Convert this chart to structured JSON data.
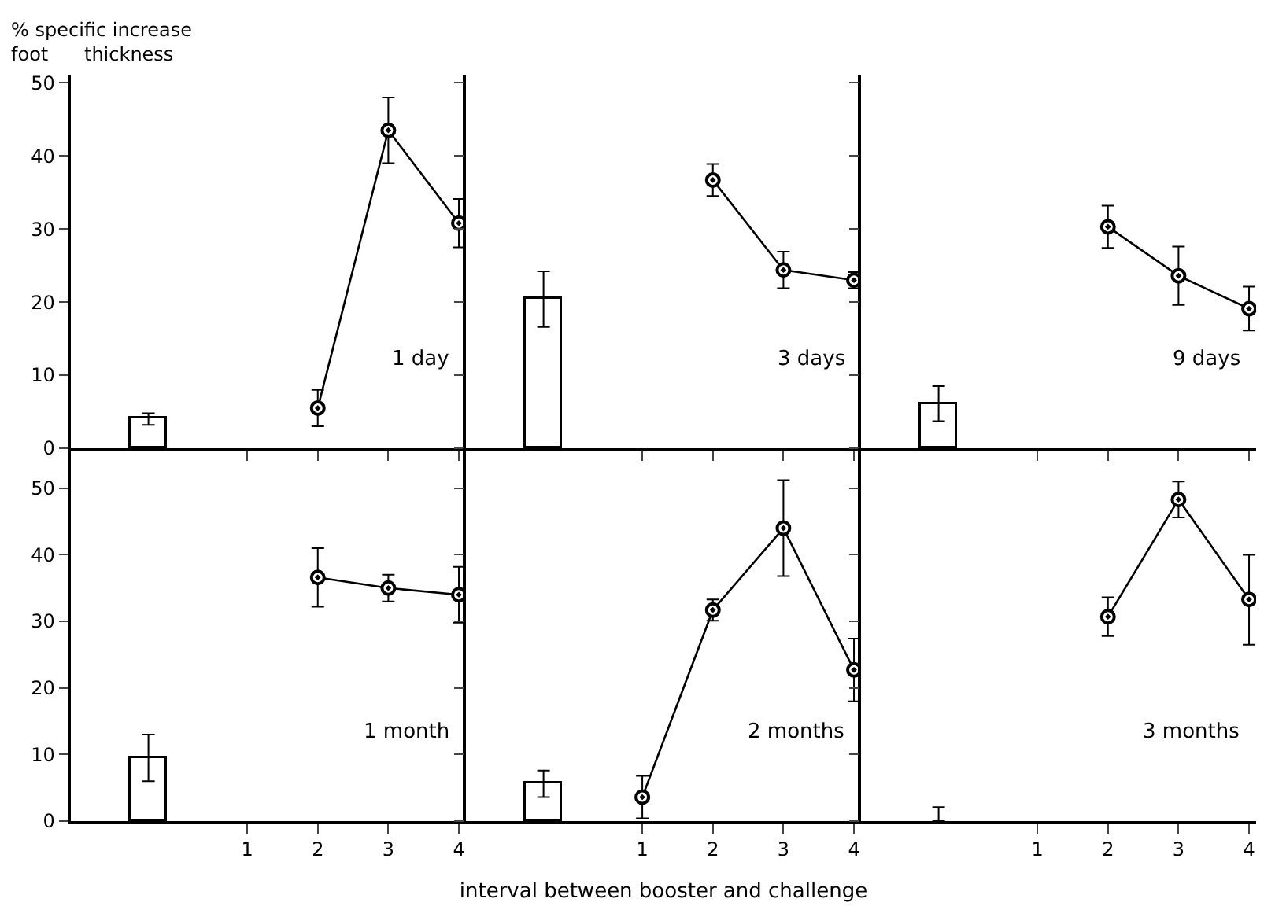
{
  "chart_data": [
    {
      "type": "line",
      "ylabel": "% specific increase\nfoot      thickness",
      "annotations": [
        "1 day"
      ],
      "xlim": [
        -1.5,
        4.1
      ],
      "xticks": [
        1,
        2,
        3,
        4
      ],
      "ylim": [
        0,
        51
      ],
      "yticks": [
        0,
        10,
        20,
        30,
        40,
        50
      ],
      "tick_labels": "y",
      "grid": false,
      "marker": "circle",
      "line_style": "solid",
      "series": [
        {
          "type": "bar",
          "x": [
            -0.4
          ],
          "values": [
            4
          ],
          "errors": [
            0.8
          ],
          "color": "#ffffff"
        },
        {
          "x": [
            2,
            3,
            4
          ],
          "values": [
            5.5,
            43.5,
            30.8
          ],
          "errors": [
            2.5,
            4.5,
            3.3
          ],
          "color": "#000000"
        }
      ]
    },
    {
      "type": "line",
      "annotations": [
        "3 days"
      ],
      "xlim": [
        -1.5,
        4.1
      ],
      "xticks": [
        1,
        2,
        3,
        4
      ],
      "ylim": [
        0,
        51
      ],
      "yticks": [
        0,
        10,
        20,
        30,
        40,
        50
      ],
      "tick_labels": false,
      "grid": false,
      "marker": "circle",
      "line_style": "solid",
      "series": [
        {
          "type": "bar",
          "x": [
            -0.4
          ],
          "values": [
            20.4
          ],
          "errors": [
            3.8
          ],
          "color": "#ffffff"
        },
        {
          "x": [
            2,
            3,
            4
          ],
          "values": [
            36.7,
            24.4,
            23.0
          ],
          "errors": [
            2.2,
            2.5,
            1.1
          ],
          "color": "#000000"
        }
      ]
    },
    {
      "type": "line",
      "annotations": [
        "9 days"
      ],
      "xlim": [
        -1.5,
        4.1
      ],
      "xticks": [
        1,
        2,
        3,
        4
      ],
      "ylim": [
        0,
        51
      ],
      "yticks": [
        0,
        10,
        20,
        30,
        40,
        50
      ],
      "tick_labels": false,
      "grid": false,
      "marker": "circle",
      "line_style": "solid",
      "series": [
        {
          "type": "bar",
          "x": [
            -0.4
          ],
          "values": [
            6.1
          ],
          "errors": [
            2.4
          ],
          "color": "#ffffff"
        },
        {
          "x": [
            2,
            3,
            4
          ],
          "values": [
            30.3,
            23.6,
            19.1
          ],
          "errors": [
            2.9,
            4.0,
            3.0
          ],
          "color": "#000000"
        }
      ]
    },
    {
      "type": "line",
      "annotations": [
        "1 month"
      ],
      "xlim": [
        -1.5,
        4.1
      ],
      "xticks": [
        1,
        2,
        3,
        4
      ],
      "ylim": [
        0,
        56
      ],
      "yticks": [
        0,
        10,
        20,
        30,
        40,
        50
      ],
      "grid": false,
      "marker": "circle",
      "line_style": "solid",
      "series": [
        {
          "type": "bar",
          "x": [
            -0.4
          ],
          "values": [
            9.5
          ],
          "errors": [
            3.5
          ],
          "color": "#ffffff"
        },
        {
          "x": [
            2,
            3,
            4
          ],
          "values": [
            36.6,
            35.0,
            34.0
          ],
          "errors": [
            4.4,
            2.0,
            4.2
          ],
          "color": "#000000"
        }
      ]
    },
    {
      "type": "line",
      "xlabel": "interval between booster and challenge",
      "annotations": [
        "2 months"
      ],
      "xlim": [
        -1.5,
        4.1
      ],
      "xticks": [
        1,
        2,
        3,
        4
      ],
      "ylim": [
        0,
        56
      ],
      "yticks": [
        0,
        10,
        20,
        30,
        40,
        50
      ],
      "tick_labels": "x",
      "grid": false,
      "marker": "circle",
      "line_style": "solid",
      "series": [
        {
          "type": "bar",
          "x": [
            -0.4
          ],
          "values": [
            5.6
          ],
          "errors": [
            2.0
          ],
          "color": "#ffffff"
        },
        {
          "x": [
            1,
            2,
            3,
            4
          ],
          "values": [
            3.6,
            31.7,
            44.0,
            22.7
          ],
          "errors": [
            3.2,
            1.6,
            7.2,
            4.7
          ],
          "color": "#000000"
        }
      ]
    },
    {
      "type": "line",
      "annotations": [
        "3 months"
      ],
      "xlim": [
        -1.5,
        4.1
      ],
      "xticks": [
        1,
        2,
        3,
        4
      ],
      "ylim": [
        0,
        56
      ],
      "yticks": [
        0,
        10,
        20,
        30,
        40,
        50
      ],
      "tick_labels": "x",
      "grid": false,
      "marker": "circle",
      "line_style": "solid",
      "series": [
        {
          "type": "bar",
          "x": [
            -0.4
          ],
          "values": [
            0
          ],
          "errors": [
            [
              0,
              2.1
            ]
          ],
          "color": "#ffffff"
        },
        {
          "x": [
            2,
            3,
            4
          ],
          "values": [
            30.7,
            48.3,
            33.3
          ],
          "errors": [
            2.9,
            2.7,
            [
              26.5,
              40.0
            ]
          ],
          "color": "#000000"
        }
      ]
    }
  ]
}
